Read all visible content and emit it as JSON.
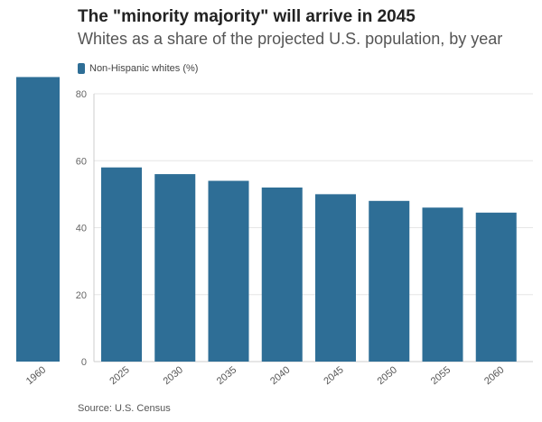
{
  "header": {
    "title": "The \"minority majority\" will arrive in 2045",
    "subtitle": "Whites as a share of the projected U.S. population, by year"
  },
  "legend": {
    "label": "Non-Hispanic whites (%)"
  },
  "source": "Source: U.S. Census",
  "colors": {
    "bar": "#2e6e96",
    "grid": "#e6e6e6",
    "axis": "#cccccc"
  },
  "chart_data": {
    "type": "bar",
    "title": "The \"minority majority\" will arrive in 2045",
    "subtitle": "Whites as a share of the projected U.S. population, by year",
    "categories": [
      "1960",
      "2025",
      "2030",
      "2035",
      "2040",
      "2045",
      "2050",
      "2055",
      "2060"
    ],
    "series": [
      {
        "name": "Non-Hispanic whites (%)",
        "values": [
          85,
          58,
          56,
          54,
          52,
          50,
          48,
          46,
          44.5
        ]
      }
    ],
    "xlabel": "",
    "ylabel": "",
    "ylim": [
      0,
      80
    ],
    "yticks": [
      0,
      20,
      40,
      60,
      80
    ],
    "grid": true,
    "legend": "top-left"
  }
}
